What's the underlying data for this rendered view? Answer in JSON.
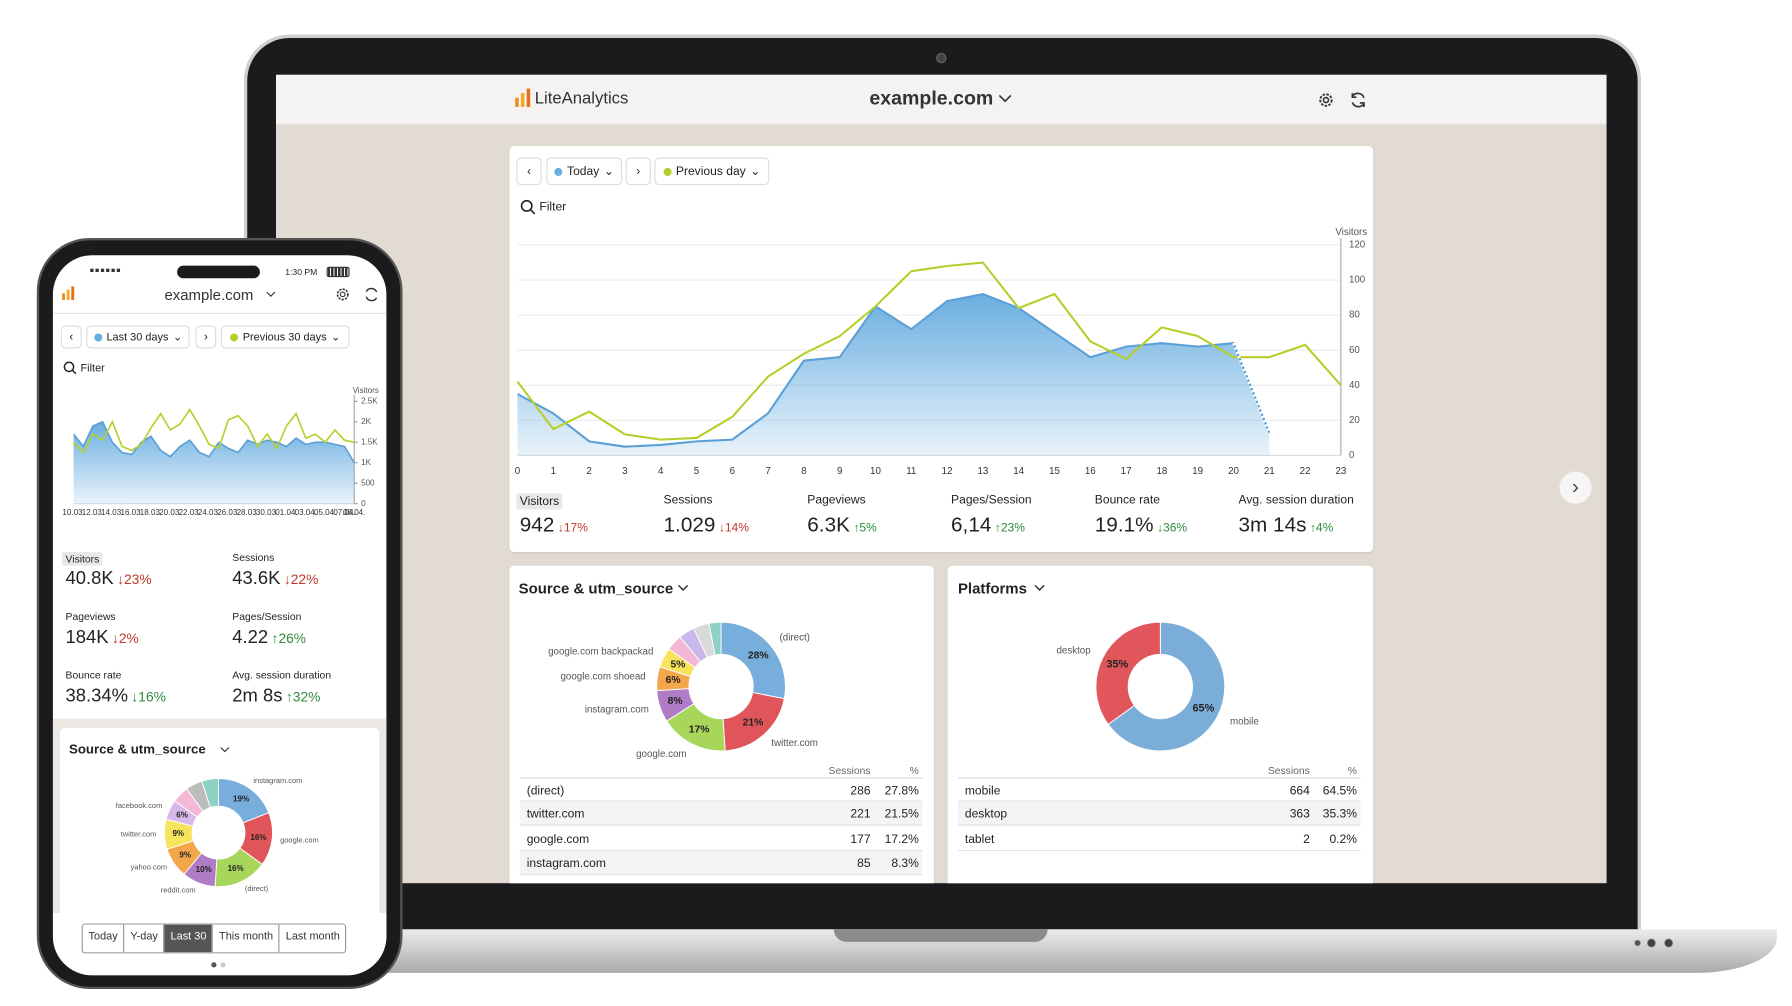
{
  "laptop": {
    "brand": "LiteAnalytics",
    "site": "example.com",
    "toolbar": {
      "period": "Today",
      "compare": "Previous day",
      "filter": "Filter"
    },
    "chart": {
      "type": "line",
      "y_label": "Visitors",
      "x": [
        0,
        1,
        2,
        3,
        4,
        5,
        6,
        7,
        8,
        9,
        10,
        11,
        12,
        13,
        14,
        15,
        16,
        17,
        18,
        19,
        20,
        21,
        22,
        23
      ],
      "xlim": [
        0,
        23
      ],
      "ylim": [
        0,
        120
      ],
      "yticks": [
        0,
        20,
        40,
        60,
        80,
        100,
        120
      ],
      "grid": true,
      "series": [
        {
          "color": "#6aaee0",
          "area": true,
          "values": [
            35,
            24,
            8,
            5,
            6,
            8,
            9,
            24,
            54,
            56,
            85,
            72,
            88,
            92,
            84,
            70,
            56,
            62,
            64,
            62,
            64,
            13,
            null,
            null
          ]
        },
        {
          "color": "#b5cf2a",
          "values": [
            42,
            15,
            25,
            12,
            9,
            10,
            22,
            45,
            58,
            68,
            85,
            105,
            108,
            110,
            84,
            92,
            65,
            55,
            73,
            68,
            56,
            56,
            63,
            40
          ]
        }
      ]
    },
    "metrics": [
      {
        "label": "Visitors",
        "value": "942",
        "change": "↓17%",
        "color": "#c0392b"
      },
      {
        "label": "Sessions",
        "value": "1.029",
        "change": "↓14%",
        "color": "#c0392b"
      },
      {
        "label": "Pageviews",
        "value": "6.3K",
        "change": "↑5%",
        "color": "#2e8b3a"
      },
      {
        "label": "Pages/Session",
        "value": "6,14",
        "change": "↑23%",
        "color": "#2e8b3a"
      },
      {
        "label": "Bounce rate",
        "value": "19.1%",
        "change": "↓36%",
        "color": "#2e8b3a"
      },
      {
        "label": "Avg. session duration",
        "value": "3m 14s",
        "change": "↑4%",
        "color": "#2e8b3a"
      }
    ],
    "sources": {
      "title": "Source & utm_source",
      "chart": {
        "type": "pie",
        "categories": [
          "(direct)",
          "twitter.com",
          "google.com",
          "instagram.com",
          "google.com shoead",
          "google.com backpackad",
          null,
          null,
          null,
          null
        ],
        "values": [
          28,
          21,
          17,
          8,
          6,
          5,
          4,
          4,
          4,
          3
        ],
        "value_labels": [
          "28%",
          "21%",
          "17%",
          "8%",
          "6%",
          "5%",
          null,
          null,
          null,
          null
        ],
        "colors": [
          "#77aedb",
          "#e0555a",
          "#a8d65a",
          "#b07cc6",
          "#f4a64a",
          "#f7e35c",
          "#f2b8d6",
          "#c9b9ea",
          "#d9d9d9",
          "#8fd1c4"
        ]
      },
      "table": {
        "header": [
          "Sessions",
          "%"
        ],
        "rows": [
          [
            "(direct)",
            "286",
            "27.8%"
          ],
          [
            "twitter.com",
            "221",
            "21.5%"
          ],
          [
            "google.com",
            "177",
            "17.2%"
          ],
          [
            "instagram.com",
            "85",
            "8.3%"
          ]
        ]
      }
    },
    "platforms": {
      "title": "Platforms",
      "chart": {
        "type": "pie",
        "categories": [
          "mobile",
          "desktop"
        ],
        "values": [
          65,
          35
        ],
        "value_labels": [
          "65%",
          "35%"
        ],
        "colors": [
          "#7aaed8",
          "#e0565b"
        ]
      },
      "table": {
        "header": [
          "Sessions",
          "%"
        ],
        "rows": [
          [
            "mobile",
            "664",
            "64.5%"
          ],
          [
            "desktop",
            "363",
            "35.3%"
          ],
          [
            "tablet",
            "2",
            "0.2%"
          ]
        ]
      }
    }
  },
  "phone": {
    "time": "1:30 PM",
    "site": "example.com",
    "toolbar": {
      "period": "Last 30 days",
      "compare": "Previous 30 days",
      "filter": "Filter"
    },
    "chart": {
      "type": "line",
      "y_label": "Visitors",
      "categories": [
        "10.03.",
        null,
        "12.03.",
        null,
        "14.03.",
        null,
        "16.03.",
        null,
        "18.03.",
        null,
        "20.03.",
        null,
        "22.03.",
        null,
        "24.03.",
        null,
        "26.03.",
        null,
        "28.03.",
        null,
        "30.03.",
        null,
        "01.04.",
        null,
        "03.04.",
        null,
        "05.04.",
        null,
        "07.04.",
        "08.04."
      ],
      "ylim": [
        0,
        2500
      ],
      "yticks": [
        0,
        500,
        {
          "value": 1000,
          "label": "1K"
        },
        {
          "value": 1500,
          "label": "1.5K"
        },
        {
          "value": 2000,
          "label": "2K"
        },
        {
          "value": 2500,
          "label": "2.5K"
        }
      ],
      "grid": false,
      "series": [
        {
          "color": "#6aaee0",
          "area": true,
          "values": [
            1700,
            1400,
            1900,
            2000,
            1500,
            1250,
            1200,
            1500,
            1650,
            1300,
            1150,
            1400,
            1550,
            1250,
            1150,
            1500,
            1350,
            1250,
            1550,
            1450,
            1550,
            1500,
            1400,
            1600,
            1450,
            1500,
            1500,
            1450,
            1400,
            1000
          ]
        },
        {
          "color": "#b5cf2a",
          "values": [
            1500,
            1250,
            1700,
            1550,
            2000,
            1400,
            1300,
            1450,
            1850,
            2200,
            1800,
            1950,
            2300,
            1900,
            1450,
            1350,
            2050,
            2150,
            1900,
            1400,
            1700,
            1350,
            1900,
            2200,
            1600,
            1700,
            1500,
            1800,
            1550,
            1500
          ]
        }
      ]
    },
    "metrics": [
      {
        "label": "Visitors",
        "value": "40.8K",
        "change": "↓23%",
        "color": "#c0392b"
      },
      {
        "label": "Sessions",
        "value": "43.6K",
        "change": "↓22%",
        "color": "#c0392b"
      },
      {
        "label": "Pageviews",
        "value": "184K",
        "change": "↓2%",
        "color": "#c0392b"
      },
      {
        "label": "Pages/Session",
        "value": "4.22",
        "change": "↑26%",
        "color": "#2e8b3a"
      },
      {
        "label": "Bounce rate",
        "value": "38.34%",
        "change": "↓16%",
        "color": "#2e8b3a"
      },
      {
        "label": "Avg. session duration",
        "value": "2m 8s",
        "change": "↑32%",
        "color": "#2e8b3a"
      }
    ],
    "sources": {
      "title": "Source & utm_source",
      "chart": {
        "type": "pie",
        "categories": [
          "instagram.com",
          "google.com",
          "(direct)",
          "reddit.com",
          "yahoo.com",
          "twitter.com",
          "facebook.com",
          null,
          null,
          null
        ],
        "values": [
          19,
          16,
          16,
          10,
          9,
          9,
          6,
          5,
          5,
          5
        ],
        "value_labels": [
          "19%",
          "16%",
          "16%",
          "10%",
          "9%",
          "9%",
          "6%",
          null,
          null,
          null
        ],
        "colors": [
          "#77aedb",
          "#e0555a",
          "#a8d65a",
          "#b07cc6",
          "#f4a64a",
          "#f7e35c",
          "#d8b8ea",
          "#f2b8d6",
          "#bdbdbd",
          "#8fd1c4"
        ]
      }
    },
    "tabs": [
      "Today",
      "Y-day",
      "Last 30",
      "This month",
      "Last month"
    ],
    "active_tab": 2
  }
}
